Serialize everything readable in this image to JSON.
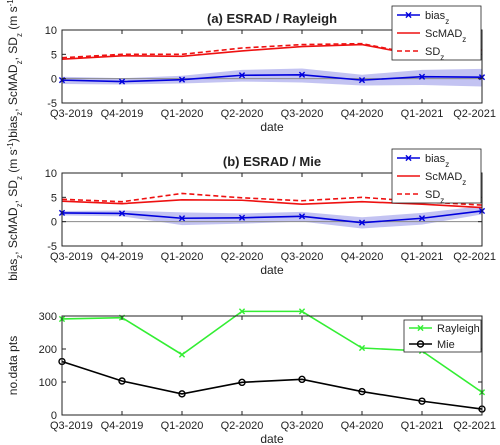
{
  "categories": [
    "Q3-2019",
    "Q4-2019",
    "Q1-2020",
    "Q2-2020",
    "Q3-2020",
    "Q4-2020",
    "Q1-2021",
    "Q2-2021"
  ],
  "chart_data": [
    {
      "type": "line",
      "title": "(a) ESRAD / Rayleigh",
      "xlabel": "date",
      "ylabel": "bias_z, ScMAD_z, SD_z (m s⁻¹)",
      "ylabel_parts": {
        "b1": "bias",
        "s1": "z",
        "c1": ", ScMAD",
        "s2": "z",
        "c2": ", SD",
        "s3": "z",
        "unit": " (m s",
        "sup": "-1",
        "close": ")"
      },
      "ylim": [
        -5,
        10
      ],
      "yticks": [
        -5,
        0,
        5,
        10
      ],
      "grid": false,
      "legend_position": "top-right",
      "series": [
        {
          "name": "bias",
          "name_sub": "z",
          "color": "#0000dd",
          "style": "solid",
          "marker": "x",
          "band_color": "#b9b9f0",
          "values": [
            -0.3,
            -0.6,
            -0.2,
            0.7,
            0.8,
            -0.3,
            0.4,
            0.3
          ],
          "band_lower": [
            -1.1,
            -1.2,
            -1.0,
            -0.6,
            -0.8,
            -1.4,
            -1.3,
            -1.6
          ],
          "band_upper": [
            0.4,
            0.1,
            0.6,
            1.8,
            2.1,
            0.8,
            1.8,
            2.0
          ]
        },
        {
          "name": "ScMAD",
          "name_sub": "z",
          "color": "#ee1111",
          "style": "solid",
          "marker": "none",
          "values": [
            4.0,
            4.7,
            4.6,
            5.7,
            6.6,
            7.0,
            4.7,
            5.9
          ]
        },
        {
          "name": "SD",
          "name_sub": "z",
          "color": "#ee1111",
          "style": "dashed",
          "marker": "none",
          "values": [
            4.3,
            5.0,
            5.0,
            6.3,
            7.0,
            7.2,
            4.8,
            5.8
          ]
        }
      ]
    },
    {
      "type": "line",
      "title": "(b) ESRAD / Mie",
      "xlabel": "date",
      "ylabel": "bias_z, ScMAD_z, SD_z (m s⁻¹)",
      "ylabel_parts": {
        "b1": "bias",
        "s1": "z",
        "c1": ", ScMAD",
        "s2": "z",
        "c2": ", SD",
        "s3": "z",
        "unit": " (m s",
        "sup": "-1",
        "close": ")"
      },
      "ylim": [
        -5,
        10
      ],
      "yticks": [
        -5,
        0,
        5,
        10
      ],
      "grid": false,
      "legend_position": "top-right",
      "series": [
        {
          "name": "bias",
          "name_sub": "z",
          "color": "#0000dd",
          "style": "solid",
          "marker": "x",
          "band_color": "#b9b9f0",
          "values": [
            1.8,
            1.7,
            0.7,
            0.8,
            1.1,
            -0.2,
            0.7,
            2.2
          ],
          "band_lower": [
            1.3,
            1.1,
            -0.7,
            -0.4,
            0.0,
            -1.4,
            -0.6,
            1.5
          ],
          "band_upper": [
            2.2,
            2.3,
            1.9,
            1.7,
            2.0,
            0.9,
            1.8,
            3.2
          ]
        },
        {
          "name": "ScMAD",
          "name_sub": "z",
          "color": "#ee1111",
          "style": "solid",
          "marker": "none",
          "values": [
            4.2,
            3.7,
            4.5,
            4.4,
            3.6,
            4.1,
            3.6,
            2.9
          ]
        },
        {
          "name": "SD",
          "name_sub": "z",
          "color": "#ee1111",
          "style": "dashed",
          "marker": "none",
          "values": [
            4.6,
            4.1,
            5.8,
            4.9,
            4.3,
            5.0,
            4.1,
            3.4
          ]
        }
      ]
    },
    {
      "type": "line",
      "title": "",
      "xlabel": "date",
      "ylabel": "no.data pts",
      "ylim": [
        0,
        300
      ],
      "yticks": [
        0,
        100,
        200,
        300
      ],
      "grid": false,
      "legend_position": "top-right",
      "series": [
        {
          "name": "Rayleigh",
          "color": "#33ee33",
          "style": "solid",
          "marker": "x",
          "values": [
            291,
            295,
            183,
            314,
            314,
            203,
            194,
            69
          ]
        },
        {
          "name": "Mie",
          "color": "#000000",
          "style": "solid",
          "marker": "o",
          "values": [
            162,
            103,
            64,
            99,
            108,
            71,
            42,
            18
          ]
        }
      ]
    }
  ]
}
